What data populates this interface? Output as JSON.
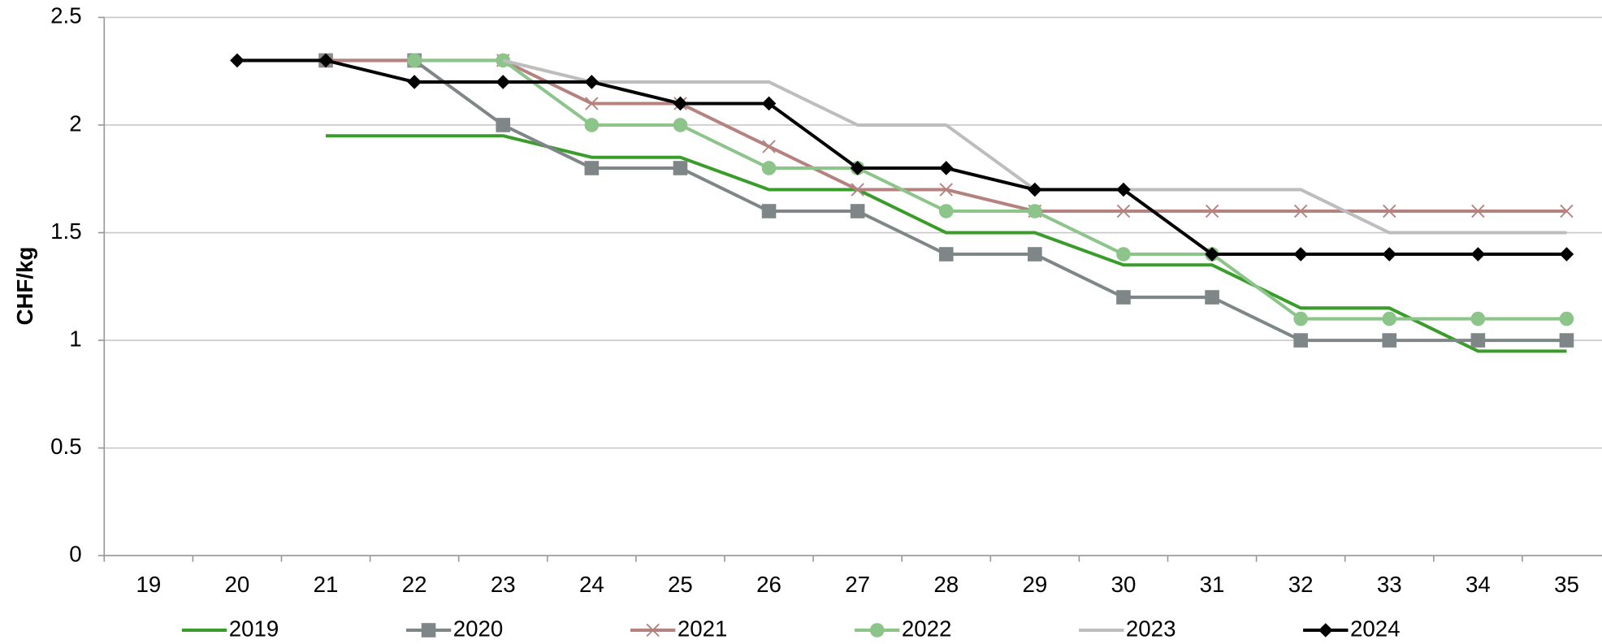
{
  "chart_data": {
    "type": "line",
    "y_label": "CHF/kg",
    "categories": [
      "19",
      "20",
      "21",
      "22",
      "23",
      "24",
      "25",
      "26",
      "27",
      "28",
      "29",
      "30",
      "31",
      "32",
      "33",
      "34",
      "35"
    ],
    "ylim": [
      0,
      2.5
    ],
    "yticks": [
      0,
      0.5,
      1,
      1.5,
      2,
      2.5
    ],
    "grid": true,
    "legend": "bottom",
    "series": [
      {
        "name": "2019",
        "color": "#3a9c2a",
        "marker": "none",
        "values": [
          null,
          null,
          1.95,
          1.95,
          1.95,
          1.85,
          1.85,
          1.7,
          1.7,
          1.5,
          1.5,
          1.35,
          1.35,
          1.15,
          1.15,
          0.95,
          0.95
        ]
      },
      {
        "name": "2020",
        "color": "#7f8687",
        "marker": "square",
        "values": [
          null,
          null,
          2.3,
          2.3,
          2.0,
          1.8,
          1.8,
          1.6,
          1.6,
          1.4,
          1.4,
          1.2,
          1.2,
          1.0,
          1.0,
          1.0,
          1.0
        ]
      },
      {
        "name": "2021",
        "color": "#b48380",
        "marker": "x",
        "values": [
          null,
          null,
          2.3,
          2.3,
          2.3,
          2.1,
          2.1,
          1.9,
          1.7,
          1.7,
          1.6,
          1.6,
          1.6,
          1.6,
          1.6,
          1.6,
          1.6
        ]
      },
      {
        "name": "2022",
        "color": "#8cc48a",
        "marker": "circle",
        "values": [
          null,
          null,
          null,
          2.3,
          2.3,
          2.0,
          2.0,
          1.8,
          1.8,
          1.6,
          1.6,
          1.4,
          1.4,
          1.1,
          1.1,
          1.1,
          1.1
        ]
      },
      {
        "name": "2023",
        "color": "#bdbdbd",
        "marker": "none",
        "values": [
          null,
          null,
          null,
          null,
          2.3,
          2.2,
          2.2,
          2.2,
          2.0,
          2.0,
          1.7,
          1.7,
          1.7,
          1.7,
          1.5,
          1.5,
          1.5
        ]
      },
      {
        "name": "2024",
        "color": "#000000",
        "marker": "diamond",
        "values": [
          null,
          2.3,
          2.3,
          2.2,
          2.2,
          2.2,
          2.1,
          2.1,
          1.8,
          1.8,
          1.7,
          1.7,
          1.4,
          1.4,
          1.4,
          1.4,
          1.4
        ]
      }
    ]
  }
}
